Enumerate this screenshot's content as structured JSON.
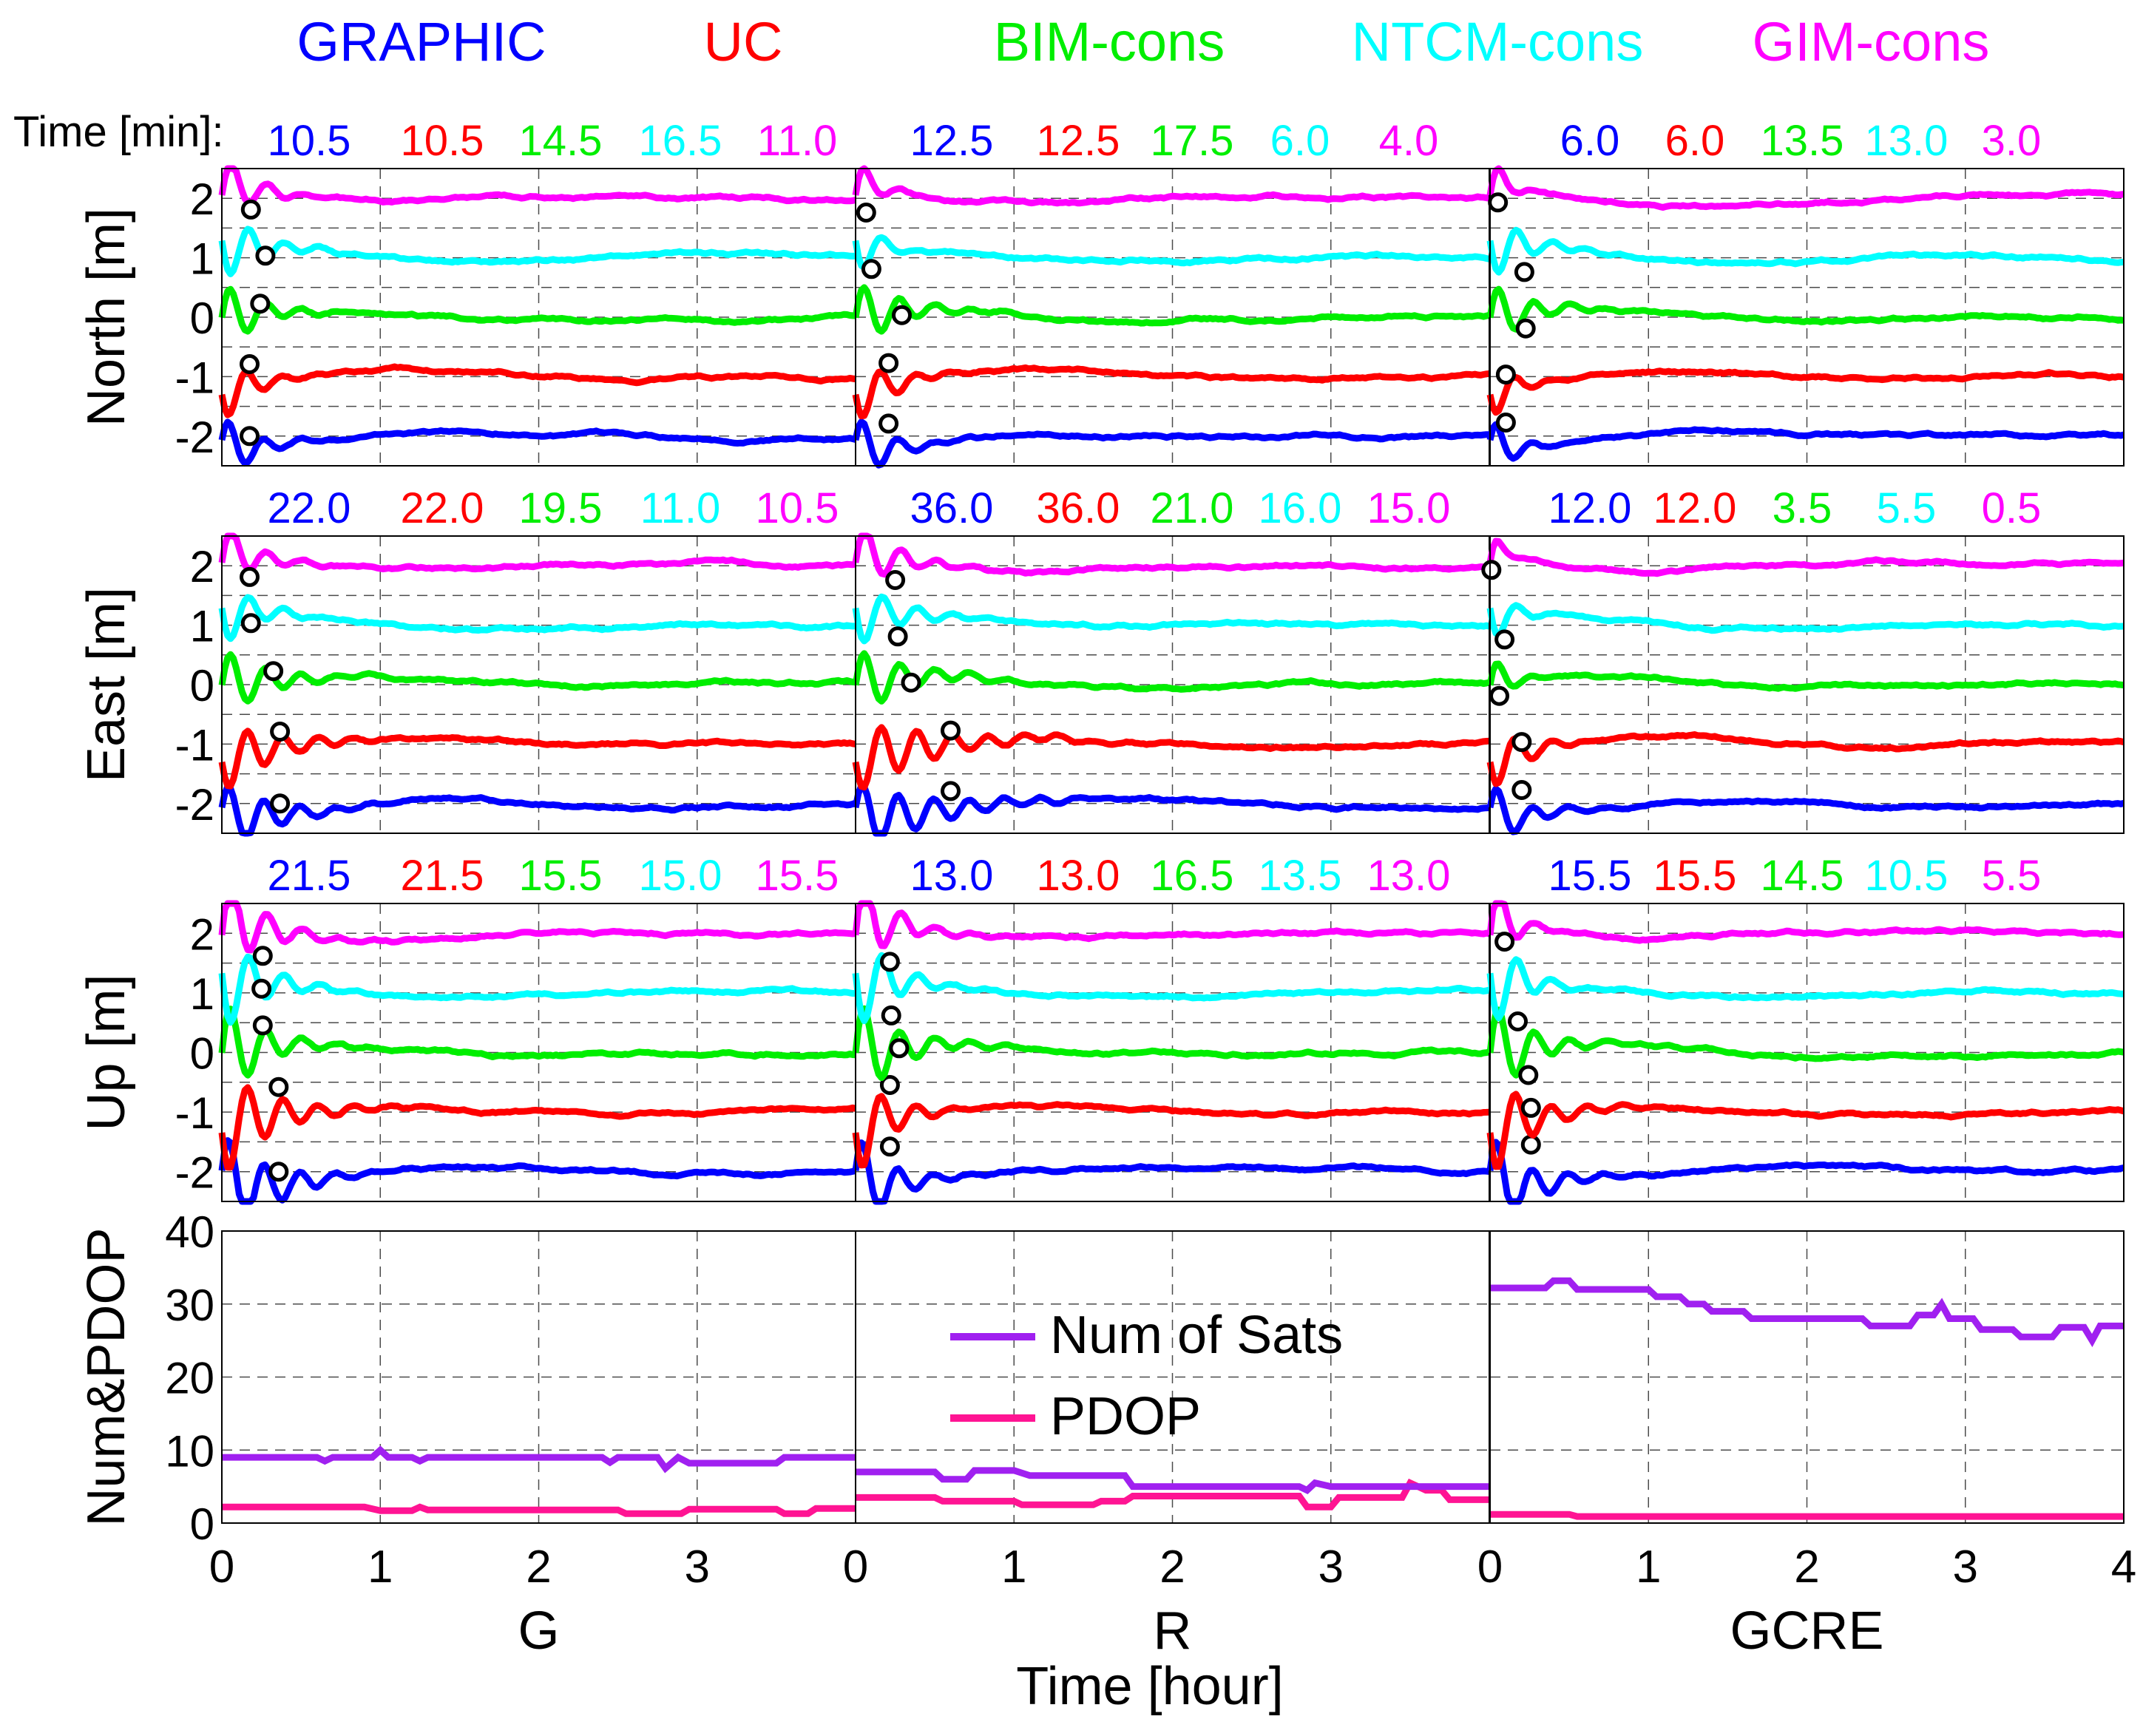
{
  "colors": {
    "GRAPHIC": "#0000ff",
    "UC": "#ff0000",
    "BIM-cons": "#00ee00",
    "NTCM-cons": "#00ffff",
    "GIM-cons": "#ff00ff",
    "num_sats": "#a020f0",
    "pdop": "#ff1493",
    "marker": "#000000"
  },
  "legend_top": [
    "GRAPHIC",
    "UC",
    "BIM-cons",
    "NTCM-cons",
    "GIM-cons"
  ],
  "time_label": "Time [min]:",
  "xlabel": "Time [hour]",
  "column_labels": [
    "G",
    "R",
    "GCRE"
  ],
  "chart_data": {
    "type": "line",
    "title": "",
    "xlabel": "Time [hour]",
    "x_ticks": [
      "0",
      "1",
      "2",
      "3",
      "4"
    ],
    "columns": [
      {
        "label": "G",
        "xlim": [
          0,
          4
        ]
      },
      {
        "label": "R",
        "xlim": [
          0,
          4
        ]
      },
      {
        "label": "GCRE",
        "xlim": [
          0,
          4
        ]
      }
    ],
    "series_names": [
      "GRAPHIC",
      "UC",
      "BIM-cons",
      "NTCM-cons",
      "GIM-cons"
    ],
    "series_offsets_m": [
      -2,
      -1,
      0,
      1,
      2
    ],
    "rows": [
      {
        "ylabel": "North [m]",
        "ylim": [
          -2.5,
          2.5
        ],
        "yticks": [
          "2",
          "1",
          "0",
          "-1",
          "-2"
        ],
        "convergence_time_min": [
          [
            "10.5",
            "10.5",
            "14.5",
            "16.5",
            "11.0"
          ],
          [
            "12.5",
            "12.5",
            "17.5",
            "6.0",
            "4.0"
          ],
          [
            "6.0",
            "6.0",
            "13.5",
            "13.0",
            "3.0"
          ]
        ]
      },
      {
        "ylabel": "East [m]",
        "ylim": [
          -2.5,
          2.5
        ],
        "yticks": [
          "2",
          "1",
          "0",
          "-1",
          "-2"
        ],
        "convergence_time_min": [
          [
            "22.0",
            "22.0",
            "19.5",
            "11.0",
            "10.5"
          ],
          [
            "36.0",
            "36.0",
            "21.0",
            "16.0",
            "15.0"
          ],
          [
            "12.0",
            "12.0",
            "3.5",
            "5.5",
            "0.5"
          ]
        ]
      },
      {
        "ylabel": "Up [m]",
        "ylim": [
          -2.5,
          2.5
        ],
        "yticks": [
          "2",
          "1",
          "0",
          "-1",
          "-2"
        ],
        "convergence_time_min": [
          [
            "21.5",
            "21.5",
            "15.5",
            "15.0",
            "15.5"
          ],
          [
            "13.0",
            "13.0",
            "16.5",
            "13.5",
            "13.0"
          ],
          [
            "15.5",
            "15.5",
            "14.5",
            "10.5",
            "5.5"
          ]
        ]
      }
    ],
    "bottom": {
      "ylabel": "Num&PDOP",
      "ylim": [
        0,
        40
      ],
      "yticks": [
        "40",
        "30",
        "20",
        "10",
        "0"
      ],
      "legend": [
        "Num of Sats",
        "PDOP"
      ],
      "num_sats": [
        [
          [
            0,
            9
          ],
          [
            0.6,
            9
          ],
          [
            0.65,
            8.5
          ],
          [
            0.7,
            9
          ],
          [
            0.95,
            9
          ],
          [
            1.0,
            10
          ],
          [
            1.05,
            9
          ],
          [
            1.2,
            9
          ],
          [
            1.25,
            8.5
          ],
          [
            1.3,
            9
          ],
          [
            2.4,
            9
          ],
          [
            2.45,
            8.3
          ],
          [
            2.5,
            9
          ],
          [
            2.75,
            9
          ],
          [
            2.8,
            7.5
          ],
          [
            2.88,
            9
          ],
          [
            2.95,
            8.2
          ],
          [
            3.5,
            8.2
          ],
          [
            3.55,
            9
          ],
          [
            4,
            9
          ]
        ],
        [
          [
            0,
            7
          ],
          [
            0.5,
            7
          ],
          [
            0.55,
            6
          ],
          [
            0.7,
            6
          ],
          [
            0.75,
            7.2
          ],
          [
            1.0,
            7.2
          ],
          [
            1.1,
            6.5
          ],
          [
            1.7,
            6.5
          ],
          [
            1.75,
            5
          ],
          [
            2.8,
            5
          ],
          [
            2.85,
            4.5
          ],
          [
            2.9,
            5.5
          ],
          [
            3.0,
            5
          ],
          [
            4,
            5
          ]
        ],
        [
          [
            0,
            32.2
          ],
          [
            0.35,
            32.2
          ],
          [
            0.4,
            33.2
          ],
          [
            0.5,
            33.2
          ],
          [
            0.55,
            32
          ],
          [
            1.0,
            32
          ],
          [
            1.05,
            31
          ],
          [
            1.2,
            31
          ],
          [
            1.25,
            30
          ],
          [
            1.35,
            30
          ],
          [
            1.4,
            29
          ],
          [
            1.6,
            29
          ],
          [
            1.65,
            28
          ],
          [
            2.35,
            28
          ],
          [
            2.4,
            27
          ],
          [
            2.65,
            27
          ],
          [
            2.7,
            28.5
          ],
          [
            2.8,
            28.5
          ],
          [
            2.85,
            30
          ],
          [
            2.9,
            28
          ],
          [
            3.05,
            28
          ],
          [
            3.1,
            26.5
          ],
          [
            3.3,
            26.5
          ],
          [
            3.35,
            25.5
          ],
          [
            3.55,
            25.5
          ],
          [
            3.6,
            26.8
          ],
          [
            3.75,
            26.8
          ],
          [
            3.8,
            25
          ],
          [
            3.85,
            27
          ],
          [
            4,
            27
          ]
        ]
      ],
      "pdop": [
        [
          [
            0,
            2.2
          ],
          [
            0.9,
            2.2
          ],
          [
            1.0,
            1.7
          ],
          [
            1.2,
            1.7
          ],
          [
            1.25,
            2.2
          ],
          [
            1.3,
            1.8
          ],
          [
            2.5,
            1.8
          ],
          [
            2.55,
            1.3
          ],
          [
            2.9,
            1.3
          ],
          [
            2.95,
            1.9
          ],
          [
            3.5,
            1.9
          ],
          [
            3.55,
            1.3
          ],
          [
            3.7,
            1.3
          ],
          [
            3.75,
            2.0
          ],
          [
            4,
            2.0
          ]
        ],
        [
          [
            0,
            3.5
          ],
          [
            0.5,
            3.5
          ],
          [
            0.55,
            3.0
          ],
          [
            1.0,
            3.0
          ],
          [
            1.05,
            2.5
          ],
          [
            1.5,
            2.5
          ],
          [
            1.55,
            3.0
          ],
          [
            1.7,
            3.0
          ],
          [
            1.75,
            3.7
          ],
          [
            2.8,
            3.7
          ],
          [
            2.85,
            2.2
          ],
          [
            3.0,
            2.2
          ],
          [
            3.05,
            3.5
          ],
          [
            3.45,
            3.5
          ],
          [
            3.5,
            5.5
          ],
          [
            3.6,
            4.5
          ],
          [
            3.7,
            4.5
          ],
          [
            3.75,
            3.2
          ],
          [
            4,
            3.2
          ]
        ],
        [
          [
            0,
            1.2
          ],
          [
            0.5,
            1.2
          ],
          [
            0.55,
            0.9
          ],
          [
            4,
            0.9
          ]
        ]
      ]
    }
  }
}
